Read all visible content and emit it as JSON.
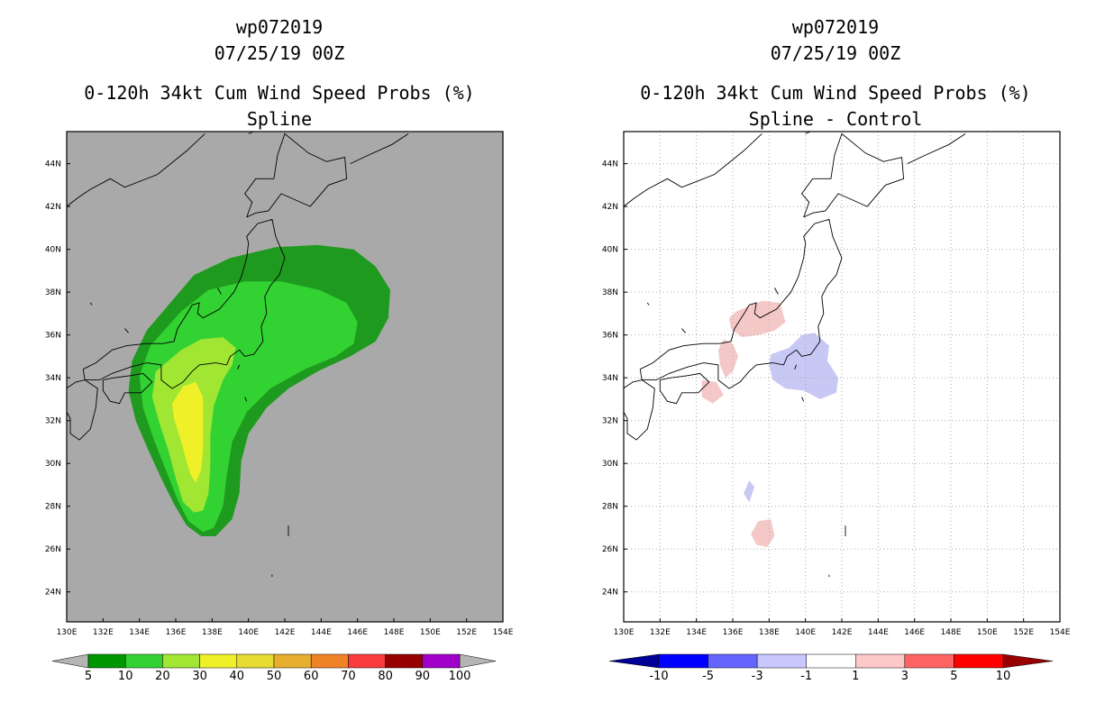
{
  "chart_data": [
    {
      "type": "heatmap",
      "storm_id": "wp072019",
      "date": "07/25/19 00Z",
      "title": "0-120h 34kt Cum Wind Speed Probs (%)",
      "subtitle": "Spline",
      "xlim": [
        130,
        154
      ],
      "ylim": [
        22.6,
        45.5
      ],
      "x_ticks": [
        "130E",
        "132E",
        "134E",
        "136E",
        "138E",
        "140E",
        "142E",
        "144E",
        "146E",
        "148E",
        "150E",
        "152E",
        "154E"
      ],
      "y_ticks": [
        "24N",
        "26N",
        "28N",
        "30N",
        "32N",
        "34N",
        "36N",
        "38N",
        "40N",
        "42N",
        "44N"
      ],
      "grid": false,
      "colorbar": {
        "labels": [
          "5",
          "10",
          "20",
          "30",
          "40",
          "50",
          "60",
          "70",
          "80",
          "90",
          "100"
        ],
        "colors": [
          "#009600",
          "#32d232",
          "#a0e632",
          "#f0f028",
          "#e6dc32",
          "#e6af2d",
          "#f08228",
          "#fa3c3c",
          "#960000",
          "#a000c8"
        ]
      },
      "contours": [
        {
          "level": 5,
          "color": "#1e9a1e",
          "polygon": [
            [
              135.6,
              37.4
            ],
            [
              137.0,
              38.8
            ],
            [
              139.0,
              39.6
            ],
            [
              141.5,
              40.1
            ],
            [
              143.8,
              40.2
            ],
            [
              145.8,
              40.0
            ],
            [
              147.0,
              39.2
            ],
            [
              147.8,
              38.1
            ],
            [
              147.7,
              36.8
            ],
            [
              147.0,
              35.7
            ],
            [
              145.6,
              35.0
            ],
            [
              143.8,
              34.3
            ],
            [
              142.2,
              33.5
            ],
            [
              141.0,
              32.6
            ],
            [
              140.0,
              31.4
            ],
            [
              139.6,
              30.1
            ],
            [
              139.5,
              28.6
            ],
            [
              139.1,
              27.4
            ],
            [
              138.2,
              26.6
            ],
            [
              137.4,
              26.6
            ],
            [
              136.6,
              27.1
            ],
            [
              135.9,
              28.1
            ],
            [
              135.2,
              29.3
            ],
            [
              134.5,
              30.6
            ],
            [
              133.8,
              32.0
            ],
            [
              133.4,
              33.4
            ],
            [
              133.6,
              34.8
            ],
            [
              134.4,
              36.2
            ]
          ]
        },
        {
          "level": 10,
          "color": "#32d232",
          "polygon": [
            [
              136.3,
              37.1
            ],
            [
              137.8,
              38.1
            ],
            [
              139.8,
              38.5
            ],
            [
              141.8,
              38.5
            ],
            [
              143.9,
              38.1
            ],
            [
              145.4,
              37.5
            ],
            [
              146.0,
              36.6
            ],
            [
              145.8,
              35.6
            ],
            [
              144.8,
              35.0
            ],
            [
              143.1,
              34.4
            ],
            [
              141.2,
              33.5
            ],
            [
              139.9,
              32.4
            ],
            [
              139.1,
              31.0
            ],
            [
              138.8,
              29.4
            ],
            [
              138.6,
              28.0
            ],
            [
              138.1,
              27.0
            ],
            [
              137.5,
              26.8
            ],
            [
              136.7,
              27.3
            ],
            [
              136.1,
              28.3
            ],
            [
              135.5,
              29.6
            ],
            [
              134.8,
              31.1
            ],
            [
              134.2,
              32.6
            ],
            [
              134.0,
              34.1
            ],
            [
              134.6,
              35.5
            ]
          ]
        },
        {
          "level": 20,
          "color": "#a0e632",
          "polygon": [
            [
              136.3,
              35.3
            ],
            [
              137.4,
              35.8
            ],
            [
              138.6,
              35.9
            ],
            [
              139.3,
              35.4
            ],
            [
              139.1,
              34.6
            ],
            [
              138.6,
              33.9
            ],
            [
              138.1,
              32.7
            ],
            [
              137.9,
              31.3
            ],
            [
              137.9,
              29.8
            ],
            [
              137.8,
              28.6
            ],
            [
              137.5,
              27.8
            ],
            [
              137.0,
              27.7
            ],
            [
              136.4,
              28.2
            ],
            [
              136.0,
              29.3
            ],
            [
              135.6,
              30.6
            ],
            [
              135.1,
              31.9
            ],
            [
              134.7,
              33.1
            ],
            [
              134.9,
              34.3
            ]
          ]
        },
        {
          "level": 30,
          "color": "#f0f028",
          "polygon": [
            [
              136.4,
              33.6
            ],
            [
              137.1,
              33.8
            ],
            [
              137.5,
              33.1
            ],
            [
              137.5,
              32.0
            ],
            [
              137.5,
              30.7
            ],
            [
              137.4,
              29.7
            ],
            [
              137.1,
              29.1
            ],
            [
              136.8,
              29.5
            ],
            [
              136.5,
              30.4
            ],
            [
              136.2,
              31.3
            ],
            [
              135.9,
              32.1
            ],
            [
              135.8,
              32.8
            ]
          ]
        }
      ]
    },
    {
      "type": "heatmap",
      "storm_id": "wp072019",
      "date": "07/25/19 00Z",
      "title": "0-120h 34kt Cum Wind Speed Probs (%)",
      "subtitle": "Spline - Control",
      "xlim": [
        130,
        154
      ],
      "ylim": [
        22.6,
        45.5
      ],
      "x_ticks": [
        "130E",
        "132E",
        "134E",
        "136E",
        "138E",
        "140E",
        "142E",
        "144E",
        "146E",
        "148E",
        "150E",
        "152E",
        "154E"
      ],
      "y_ticks": [
        "24N",
        "26N",
        "28N",
        "30N",
        "32N",
        "34N",
        "36N",
        "38N",
        "40N",
        "42N",
        "44N"
      ],
      "grid": true,
      "colorbar": {
        "labels": [
          "-10",
          "-5",
          "-3",
          "-1",
          "1",
          "3",
          "5",
          "10"
        ],
        "colors": [
          "#000096",
          "#0000ff",
          "#6464ff",
          "#c8c8ff",
          "#ffffff",
          "#ffc8c8",
          "#ff6464",
          "#ff0000",
          "#960000"
        ]
      },
      "contours": [
        {
          "level": 1,
          "color": "#f5c8c8",
          "polygon": [
            [
              136.2,
              37.1
            ],
            [
              137.6,
              37.6
            ],
            [
              138.6,
              37.5
            ],
            [
              138.9,
              36.6
            ],
            [
              138.3,
              36.2
            ],
            [
              137.4,
              36.0
            ],
            [
              136.5,
              35.9
            ],
            [
              135.9,
              36.3
            ],
            [
              135.8,
              36.8
            ]
          ]
        },
        {
          "level": 1,
          "color": "#f5c8c8",
          "polygon": [
            [
              135.5,
              35.8
            ],
            [
              136.0,
              35.6
            ],
            [
              136.3,
              35.0
            ],
            [
              136.0,
              34.3
            ],
            [
              135.6,
              34.0
            ],
            [
              135.3,
              34.6
            ],
            [
              135.2,
              35.3
            ]
          ]
        },
        {
          "level": 1,
          "color": "#f5c8c8",
          "polygon": [
            [
              134.3,
              33.9
            ],
            [
              135.1,
              33.8
            ],
            [
              135.5,
              33.2
            ],
            [
              134.9,
              32.8
            ],
            [
              134.3,
              33.1
            ]
          ]
        },
        {
          "level": 1,
          "color": "#f5c8c8",
          "polygon": [
            [
              137.4,
              27.3
            ],
            [
              138.1,
              27.4
            ],
            [
              138.3,
              26.6
            ],
            [
              137.9,
              26.1
            ],
            [
              137.3,
              26.2
            ],
            [
              137.0,
              26.7
            ]
          ]
        },
        {
          "level": -1,
          "color": "#c8c8f5",
          "polygon": [
            [
              138.1,
              35.1
            ],
            [
              139.1,
              35.4
            ],
            [
              139.8,
              36.0
            ],
            [
              140.5,
              36.1
            ],
            [
              141.3,
              35.5
            ],
            [
              141.2,
              34.8
            ],
            [
              141.8,
              34.0
            ],
            [
              141.7,
              33.3
            ],
            [
              140.8,
              33.0
            ],
            [
              139.9,
              33.4
            ],
            [
              138.9,
              33.5
            ],
            [
              138.2,
              33.9
            ],
            [
              138.0,
              34.6
            ]
          ]
        },
        {
          "level": -1,
          "color": "#c8c8f5",
          "polygon": [
            [
              136.9,
              29.2
            ],
            [
              137.2,
              28.9
            ],
            [
              136.9,
              28.2
            ],
            [
              136.6,
              28.6
            ]
          ]
        }
      ]
    }
  ]
}
